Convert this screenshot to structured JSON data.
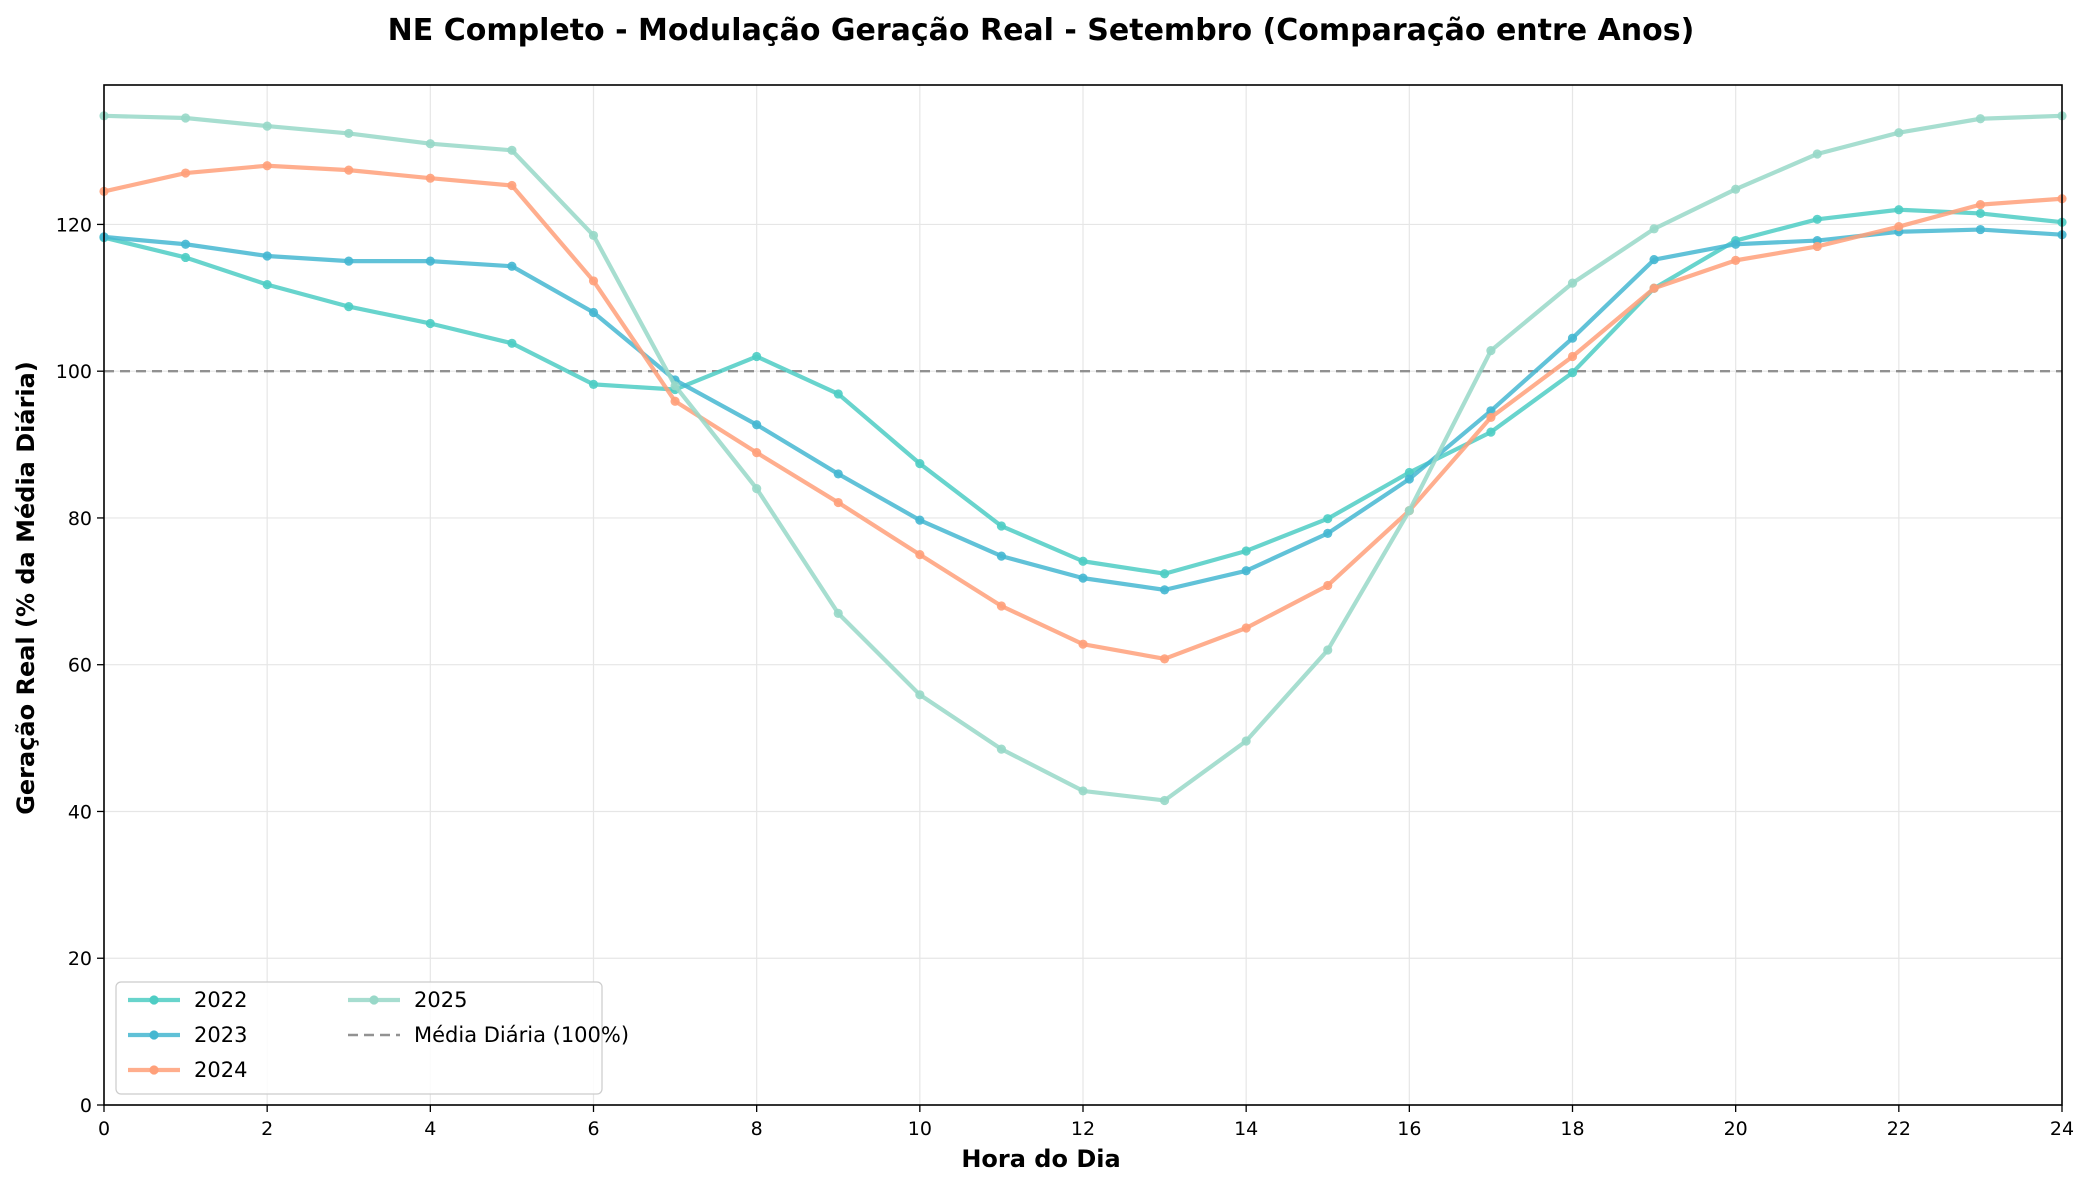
{
  "chart_data": {
    "type": "line",
    "title": "NE Completo - Modulação Geração Real - Setembro (Comparação entre Anos)",
    "xlabel": "Hora do Dia",
    "ylabel": "Geração Real (% da Média Diária)",
    "xlim": [
      0,
      24
    ],
    "ylim": [
      0,
      139
    ],
    "xticks": [
      "0",
      "2",
      "4",
      "6",
      "8",
      "10",
      "12",
      "14",
      "16",
      "18",
      "20",
      "22",
      "24"
    ],
    "yticks": [
      "0",
      "20",
      "40",
      "60",
      "80",
      "100",
      "120"
    ],
    "grid": true,
    "legend_position": "lower-left",
    "x": [
      0,
      1,
      2,
      3,
      4,
      5,
      6,
      7,
      8,
      9,
      10,
      11,
      12,
      13,
      14,
      15,
      16,
      17,
      18,
      19,
      20,
      21,
      22,
      23,
      24
    ],
    "series": [
      {
        "name": "2022",
        "color": "#4ECDC4",
        "values": [
          118.2,
          115.5,
          111.8,
          108.8,
          106.5,
          103.8,
          98.2,
          97.5,
          102.0,
          96.9,
          87.4,
          78.9,
          74.1,
          72.4,
          75.5,
          79.9,
          86.2,
          91.7,
          99.8,
          111.3,
          117.8,
          120.7,
          122.0,
          121.5,
          120.3
        ]
      },
      {
        "name": "2023",
        "color": "#45B7D1",
        "values": [
          118.3,
          117.3,
          115.7,
          115.0,
          115.0,
          114.3,
          108.0,
          98.8,
          92.7,
          86.0,
          79.7,
          74.8,
          71.8,
          70.2,
          72.8,
          77.9,
          85.3,
          94.6,
          104.5,
          115.2,
          117.3,
          117.8,
          119.0,
          119.3,
          118.6
        ]
      },
      {
        "name": "2024",
        "color": "#FFA07A",
        "values": [
          124.5,
          127.0,
          128.0,
          127.4,
          126.3,
          125.3,
          112.3,
          95.9,
          88.9,
          82.1,
          75.0,
          68.0,
          62.8,
          60.8,
          65.0,
          70.8,
          81.0,
          93.7,
          102.0,
          111.3,
          115.1,
          117.0,
          119.7,
          122.7,
          123.5
        ]
      },
      {
        "name": "2025",
        "color": "#98D8C8",
        "values": [
          134.8,
          134.5,
          133.4,
          132.4,
          131.0,
          130.1,
          118.5,
          98.0,
          84.0,
          67.0,
          55.9,
          48.5,
          42.8,
          41.5,
          49.6,
          62.0,
          81.0,
          102.8,
          112.0,
          119.4,
          124.8,
          129.6,
          132.5,
          134.4,
          134.8
        ]
      }
    ],
    "reference_line": {
      "name": "Média Diária (100%)",
      "value": 100,
      "color": "#808080"
    }
  }
}
